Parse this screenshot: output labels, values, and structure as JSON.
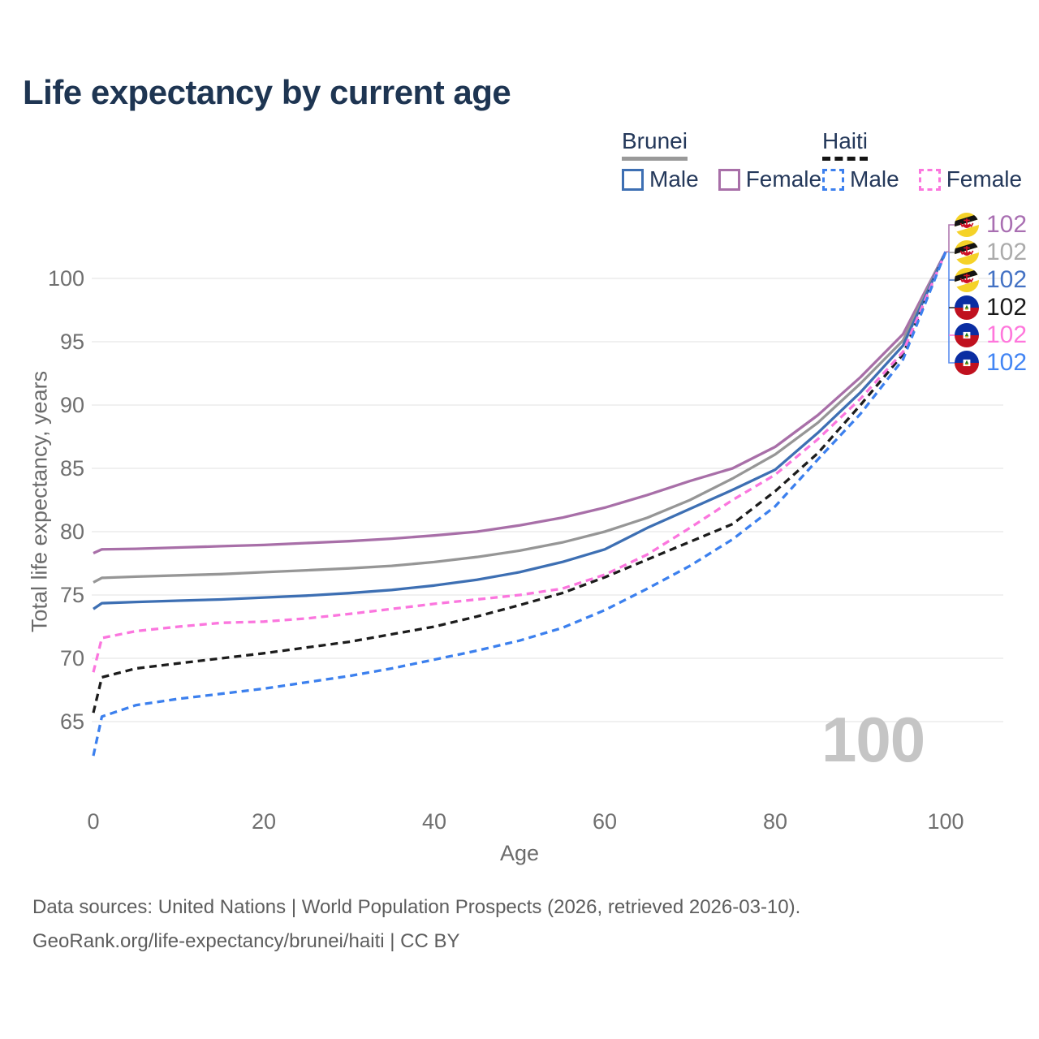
{
  "title": "Life expectancy by current age",
  "y_axis_title": "Total life expectancy, years",
  "x_axis_title": "Age",
  "watermark": "100",
  "footer": {
    "line1": "Data sources: United Nations | World Population Prospects (2026, retrieved 2026-03-10).",
    "line2": "GeoRank.org/life-expectancy/brunei/haiti | CC BY"
  },
  "legend": {
    "groups": [
      {
        "label": "Brunei",
        "underline_color": "#999999",
        "underline_dashed": false,
        "items": [
          {
            "label": "Male",
            "color": "#3d6fb3",
            "dashed": false
          },
          {
            "label": "Female",
            "color": "#a86fa8",
            "dashed": false
          }
        ]
      },
      {
        "label": "Haiti",
        "underline_color": "#141414",
        "underline_dashed": true,
        "items": [
          {
            "label": "Male",
            "color": "#3c80ee",
            "dashed": true
          },
          {
            "label": "Female",
            "color": "#fb76de",
            "dashed": true
          }
        ]
      }
    ]
  },
  "chart_data": {
    "type": "line",
    "title": "Life expectancy by current age",
    "xlabel": "Age",
    "ylabel": "Total life expectancy, years",
    "xlim": [
      0,
      100
    ],
    "ylim": [
      62,
      103
    ],
    "xticks": [
      0,
      20,
      40,
      60,
      80,
      100
    ],
    "yticks": [
      65,
      70,
      75,
      80,
      85,
      90,
      95,
      100
    ],
    "grid": "horizontal",
    "legend_position": "top-right",
    "x": [
      0,
      1,
      5,
      10,
      15,
      20,
      25,
      30,
      35,
      40,
      45,
      50,
      55,
      60,
      65,
      70,
      75,
      80,
      85,
      90,
      95,
      100
    ],
    "series": [
      {
        "name": "Brunei Female",
        "country": "Brunei",
        "group": "Female",
        "flag": "brunei",
        "color": "#a86fa8",
        "label_color": "#a96fb2",
        "dashed": false,
        "end_label": "102",
        "values": [
          78.3,
          78.6,
          78.65,
          78.75,
          78.85,
          78.95,
          79.1,
          79.25,
          79.45,
          79.7,
          80.0,
          80.5,
          81.1,
          81.9,
          82.9,
          84.0,
          85.0,
          86.7,
          89.2,
          92.2,
          95.6,
          102.1
        ]
      },
      {
        "name": "Brunei (both sexes)",
        "country": "Brunei",
        "group": "Both",
        "flag": "brunei",
        "color": "#969696",
        "label_color": "#ababab",
        "dashed": false,
        "end_label": "102",
        "values": [
          76.0,
          76.35,
          76.45,
          76.55,
          76.65,
          76.8,
          76.95,
          77.1,
          77.3,
          77.6,
          78.0,
          78.5,
          79.15,
          80.0,
          81.1,
          82.5,
          84.2,
          86.1,
          88.6,
          91.7,
          95.1,
          102.1
        ]
      },
      {
        "name": "Brunei Male",
        "country": "Brunei",
        "group": "Male",
        "flag": "brunei",
        "color": "#3d6fb3",
        "label_color": "#4472c4",
        "dashed": false,
        "end_label": "102",
        "values": [
          73.9,
          74.35,
          74.45,
          74.55,
          74.65,
          74.8,
          74.95,
          75.15,
          75.4,
          75.75,
          76.2,
          76.8,
          77.6,
          78.6,
          80.3,
          81.8,
          83.3,
          84.9,
          87.8,
          91.0,
          94.7,
          102.1
        ]
      },
      {
        "name": "Haiti (both sexes)",
        "country": "Haiti",
        "group": "Both",
        "flag": "haiti",
        "color": "#1c1c1c",
        "label_color": "#1a1a1a",
        "dashed": true,
        "end_label": "102",
        "values": [
          65.7,
          68.5,
          69.2,
          69.6,
          70.0,
          70.4,
          70.85,
          71.3,
          71.9,
          72.5,
          73.3,
          74.2,
          75.15,
          76.4,
          77.8,
          79.2,
          80.6,
          83.2,
          86.2,
          90.0,
          94.0,
          102.1
        ]
      },
      {
        "name": "Haiti Female",
        "country": "Haiti",
        "group": "Female",
        "flag": "haiti",
        "color": "#fb76de",
        "label_color": "#ff77dc",
        "dashed": true,
        "end_label": "102",
        "values": [
          68.9,
          71.6,
          72.15,
          72.5,
          72.8,
          72.9,
          73.15,
          73.5,
          73.9,
          74.3,
          74.65,
          75.0,
          75.5,
          76.6,
          78.2,
          80.3,
          82.5,
          84.5,
          87.3,
          90.5,
          94.2,
          102.1
        ]
      },
      {
        "name": "Haiti Male",
        "country": "Haiti",
        "group": "Male",
        "flag": "haiti",
        "color": "#3c80ee",
        "label_color": "#4285f4",
        "dashed": true,
        "end_label": "102",
        "values": [
          62.3,
          65.4,
          66.3,
          66.8,
          67.2,
          67.6,
          68.1,
          68.6,
          69.2,
          69.9,
          70.6,
          71.4,
          72.4,
          73.8,
          75.5,
          77.3,
          79.4,
          82.0,
          85.7,
          89.3,
          93.6,
          102.1
        ]
      }
    ]
  }
}
